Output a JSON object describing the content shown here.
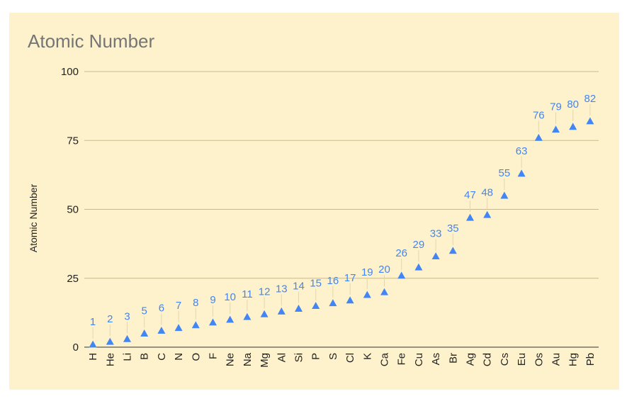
{
  "chart_data": {
    "type": "scatter",
    "title": "Atomic Number",
    "ylabel": "Atomic Number",
    "xlabel": "",
    "ylim": [
      0,
      100
    ],
    "yticks": [
      0,
      25,
      50,
      75,
      100
    ],
    "grid": true,
    "marker": "triangle",
    "colors": {
      "background": "#fef2cc",
      "series": "#4285f4",
      "grid": "#c8b98a"
    },
    "categories": [
      "H",
      "He",
      "Li",
      "B",
      "C",
      "N",
      "O",
      "F",
      "Ne",
      "Na",
      "Mg",
      "Al",
      "Si",
      "P",
      "S",
      "Cl",
      "K",
      "Ca",
      "Fe",
      "Cu",
      "As",
      "Br",
      "Ag",
      "Cd",
      "Cs",
      "Eu",
      "Os",
      "Au",
      "Hg",
      "Pb"
    ],
    "values": [
      1,
      2,
      3,
      5,
      6,
      7,
      8,
      9,
      10,
      11,
      12,
      13,
      14,
      15,
      16,
      17,
      19,
      20,
      26,
      29,
      33,
      35,
      47,
      48,
      55,
      63,
      76,
      79,
      80,
      82
    ]
  }
}
